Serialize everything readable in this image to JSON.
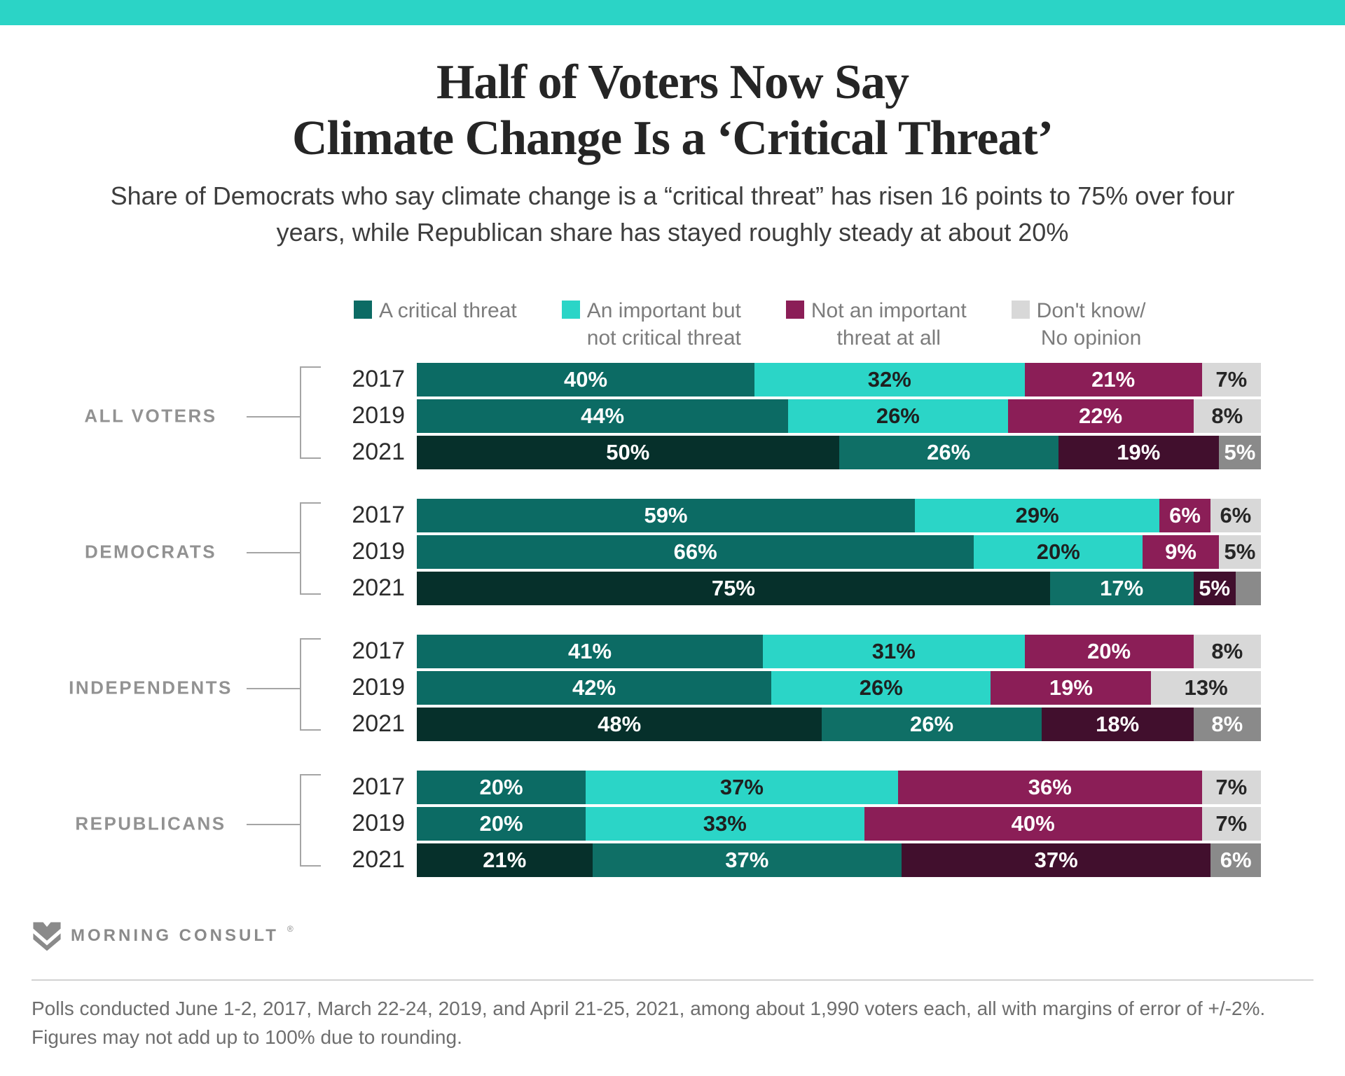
{
  "page": {
    "background": "#ffffff",
    "accent_color": "#2BD4C6"
  },
  "header": {
    "title_lines": [
      "Half of Voters Now Say",
      "Climate Change Is a ‘Critical Threat’"
    ],
    "subtitle": "Share of Democrats who say climate change is a “critical threat” has risen 16 points to 75% over four years, while Republican share has stayed roughly steady at about 20%"
  },
  "legend": {
    "items": [
      {
        "key": "critical",
        "lines": [
          "A critical threat"
        ],
        "color": "#0C6B64"
      },
      {
        "key": "important",
        "lines": [
          "An important but",
          "not critical threat"
        ],
        "color": "#2BD5C7"
      },
      {
        "key": "not-important",
        "lines": [
          "Not an important",
          "threat at all"
        ],
        "color": "#8B1E57"
      },
      {
        "key": "dont-know",
        "lines": [
          "Don't know/",
          "No opinion"
        ],
        "color": "#D8D8D8"
      }
    ]
  },
  "chart_data": {
    "type": "bar",
    "variant": "horizontal-stacked",
    "unit": "percent",
    "axis_range": [
      0,
      100
    ],
    "grid": false,
    "legend_position": "top",
    "categories": [
      "A critical threat",
      "An important but not critical threat",
      "Not an important threat at all",
      "Don't know/No opinion"
    ],
    "palette": {
      "normal": {
        "fills": [
          "#0C6B64",
          "#2BD5C7",
          "#8B1E57",
          "#D8D8D8"
        ],
        "label_colors": [
          "#FFFFFF",
          "#1F1F1F",
          "#FFFFFF",
          "#262626"
        ]
      },
      "dark2021": {
        "fills": [
          "#06302B",
          "#0F6F66",
          "#410F2D",
          "#8A8A8A"
        ],
        "label_colors": [
          "#FFFFFF",
          "#FFFFFF",
          "#FFFFFF",
          "#FFFFFF"
        ]
      }
    },
    "groups": [
      {
        "label": "ALL VOTERS",
        "rows": [
          {
            "year": "2017",
            "style": "normal",
            "values": [
              40,
              32,
              21,
              7
            ],
            "labels": [
              "40%",
              "32%",
              "21%",
              "7%"
            ]
          },
          {
            "year": "2019",
            "style": "normal",
            "values": [
              44,
              26,
              22,
              8
            ],
            "labels": [
              "44%",
              "26%",
              "22%",
              "8%"
            ]
          },
          {
            "year": "2021",
            "style": "dark2021",
            "values": [
              50,
              26,
              19,
              5
            ],
            "labels": [
              "50%",
              "26%",
              "19%",
              "5%"
            ]
          }
        ]
      },
      {
        "label": "DEMOCRATS",
        "rows": [
          {
            "year": "2017",
            "style": "normal",
            "values": [
              59,
              29,
              6,
              6
            ],
            "labels": [
              "59%",
              "29%",
              "6%",
              "6%"
            ]
          },
          {
            "year": "2019",
            "style": "normal",
            "values": [
              66,
              20,
              9,
              5
            ],
            "labels": [
              "66%",
              "20%",
              "9%",
              "5%"
            ]
          },
          {
            "year": "2021",
            "style": "dark2021",
            "values": [
              75,
              17,
              5,
              3
            ],
            "labels": [
              "75%",
              "17%",
              "5%",
              ""
            ]
          }
        ]
      },
      {
        "label": "INDEPENDENTS",
        "rows": [
          {
            "year": "2017",
            "style": "normal",
            "values": [
              41,
              31,
              20,
              8
            ],
            "labels": [
              "41%",
              "31%",
              "20%",
              "8%"
            ]
          },
          {
            "year": "2019",
            "style": "normal",
            "values": [
              42,
              26,
              19,
              13
            ],
            "labels": [
              "42%",
              "26%",
              "19%",
              "13%"
            ]
          },
          {
            "year": "2021",
            "style": "dark2021",
            "values": [
              48,
              26,
              18,
              8
            ],
            "labels": [
              "48%",
              "26%",
              "18%",
              "8%"
            ]
          }
        ]
      },
      {
        "label": "REPUBLICANS",
        "rows": [
          {
            "year": "2017",
            "style": "normal",
            "values": [
              20,
              37,
              36,
              7
            ],
            "labels": [
              "20%",
              "37%",
              "36%",
              "7%"
            ]
          },
          {
            "year": "2019",
            "style": "normal",
            "values": [
              20,
              33,
              40,
              7
            ],
            "labels": [
              "20%",
              "33%",
              "40%",
              "7%"
            ]
          },
          {
            "year": "2021",
            "style": "dark2021",
            "values": [
              21,
              37,
              37,
              6
            ],
            "labels": [
              "21%",
              "37%",
              "37%",
              "6%"
            ]
          }
        ]
      }
    ]
  },
  "footer": {
    "brand": "MORNING CONSULT",
    "registered_mark": "®",
    "note": "Polls conducted June 1-2, 2017, March 22-24, 2019, and April 21-25, 2021, among about 1,990 voters each, all with margins of error of +/-2%. Figures may not add up to 100% due to rounding."
  }
}
